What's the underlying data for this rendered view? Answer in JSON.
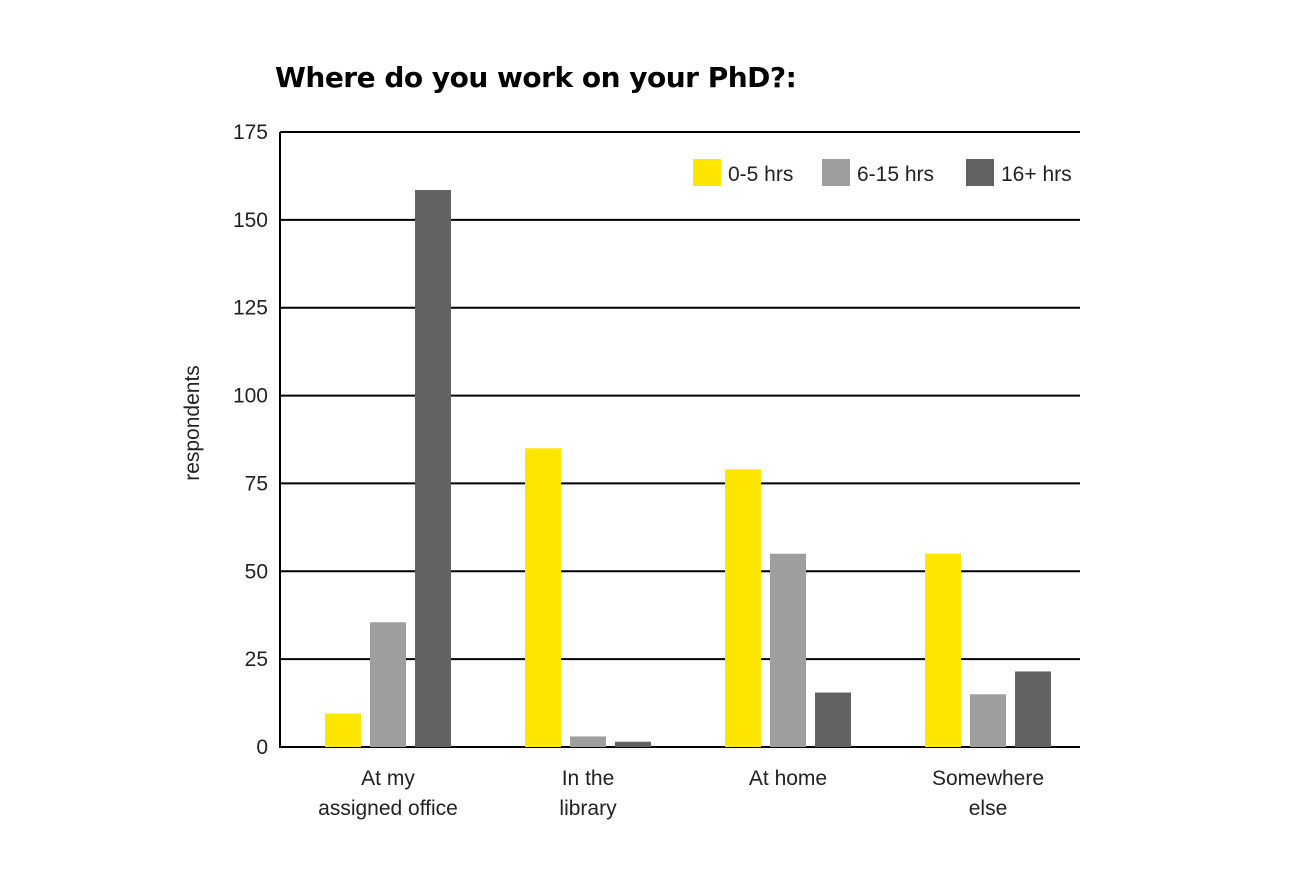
{
  "chart_data": {
    "type": "bar",
    "title": "Where do you work on your PhD?:",
    "xlabel": "",
    "ylabel": "respondents",
    "ylim": [
      0,
      175
    ],
    "yticks": [
      0,
      25,
      50,
      75,
      100,
      125,
      150,
      175
    ],
    "grid": true,
    "legend_position": "top-right",
    "categories": [
      [
        "At my",
        "assigned office"
      ],
      [
        "In the",
        "library"
      ],
      [
        "At home"
      ],
      [
        "Somewhere",
        "else"
      ]
    ],
    "series": [
      {
        "name": "0-5 hrs",
        "color": "#FFE600",
        "values": [
          9.5,
          85,
          79,
          55
        ]
      },
      {
        "name": "6-15 hrs",
        "color": "#9E9E9E",
        "values": [
          35.5,
          3,
          55,
          15
        ]
      },
      {
        "name": "16+ hrs",
        "color": "#626262",
        "values": [
          158.5,
          1.5,
          15.5,
          21.5
        ]
      }
    ]
  }
}
